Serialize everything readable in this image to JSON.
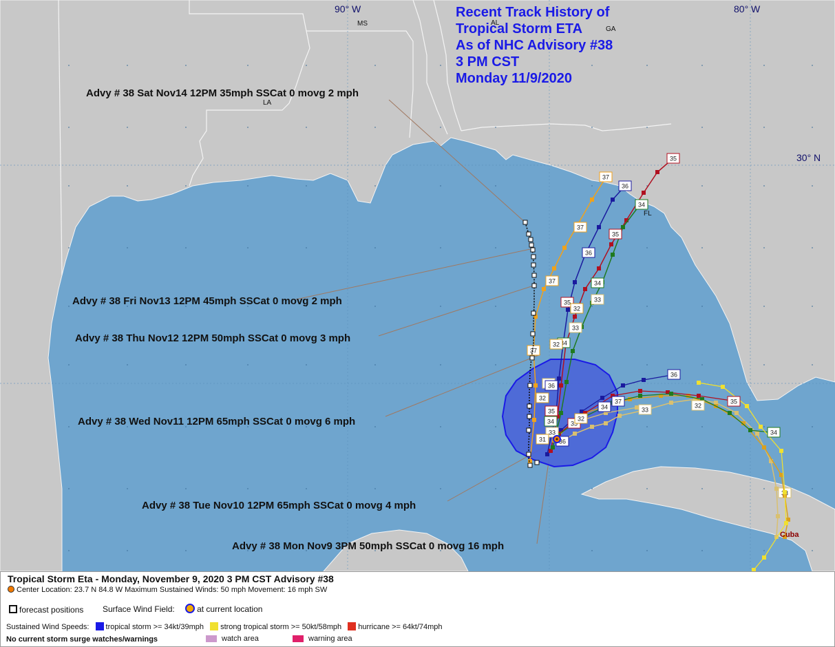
{
  "title": {
    "line1": "Recent Track History of",
    "line2": "Tropical Storm ETA",
    "line3": "As of NHC Advisory #38",
    "line4": "3 PM CST",
    "line5": "Monday 11/9/2020"
  },
  "grid_labels": {
    "lon_90": "90° W",
    "lon_80": "80° W",
    "lat_30": "30° N"
  },
  "state_labels": {
    "ms": "MS",
    "al": "AL",
    "ga": "GA",
    "la": "LA",
    "fl": "FL",
    "cuba": "Cuba"
  },
  "forecast_annotations": [
    {
      "id": "sat",
      "text": "Advy # 38 Sat Nov14 12PM  35mph SSCat 0 movg 2 mph"
    },
    {
      "id": "fri",
      "text": "Advy # 38 Fri Nov13 12PM  45mph SSCat 0 movg 2 mph"
    },
    {
      "id": "thu",
      "text": "Advy # 38 Thu Nov12 12PM  50mph SSCat 0 movg 3 mph"
    },
    {
      "id": "wed",
      "text": "Advy # 38 Wed Nov11 12PM  65mph SSCat 0 movg 6 mph"
    },
    {
      "id": "tue",
      "text": "Advy # 38 Tue Nov10 12PM  65mph SSCat 0 movg 4 mph"
    },
    {
      "id": "mon",
      "text": "Advy # 38 Mon Nov9 3PM  50mph SSCat 0 movg 16 mph"
    }
  ],
  "tracks": [
    {
      "advisory": "37",
      "color": "#f0a21c"
    },
    {
      "advisory": "36",
      "color": "#1a1a9e"
    },
    {
      "advisory": "35",
      "color": "#b01020"
    },
    {
      "advisory": "34",
      "color": "#1f7a1f"
    },
    {
      "advisory": "33",
      "color": "#d9c070"
    },
    {
      "advisory": "32",
      "color": "#d9a020"
    }
  ],
  "legend": {
    "header": "Tropical Storm Eta  -  Monday, November 9, 2020  3 PM CST   Advisory #38",
    "center_info": "Center Location: 23.7 N  84.8 W   Maximum Sustained Winds: 50 mph  Movement: 16 mph SW",
    "forecast_positions": "forecast positions",
    "surface_wind_field": "Surface Wind Field:",
    "at_current_location": "at current location",
    "sustained_wind_speeds": "Sustained Wind Speeds:",
    "tropical_storm": "tropical storm >= 34kt/39mph",
    "strong_tropical_storm": "strong tropical storm >= 50kt/58mph",
    "hurricane": "hurricane >= 64kt/74mph",
    "surge_note": "No current storm surge watches/warnings",
    "watch_area": "watch area",
    "warning_area": "warning area",
    "colors": {
      "tropical_storm": "#1a1ae6",
      "strong_tropical_storm": "#f0e030",
      "hurricane": "#e03020",
      "watch_area": "#cc99cc",
      "warning_area": "#e0206a",
      "ocean": "#6fa5ce",
      "land": "#c8c8c8",
      "wind_field": "#4a63d8"
    }
  }
}
